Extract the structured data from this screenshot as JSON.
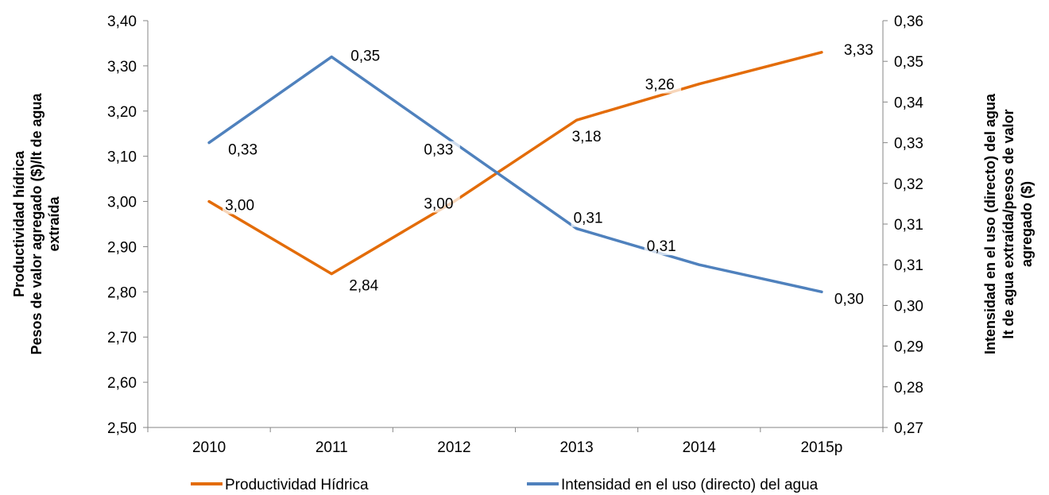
{
  "chart_data": {
    "type": "line",
    "categories": [
      "2010",
      "2011",
      "2012",
      "2013",
      "2014",
      "2015p"
    ],
    "y_left": {
      "title_lines": [
        "Productividad hídrica",
        "Pesos de valor agregado ($)/lt de agua",
        "extraída"
      ],
      "range": [
        2.5,
        3.4
      ],
      "ticks": [
        "2,50",
        "2,60",
        "2,70",
        "2,80",
        "2,90",
        "3,00",
        "3,10",
        "3,20",
        "3,30",
        "3,40"
      ]
    },
    "y_right": {
      "title_lines": [
        "Intensidad en el uso (directo) del agua",
        "lt de agua extraída/pesos de valor",
        "agregado ($)"
      ],
      "range": [
        0.27,
        0.36
      ],
      "ticks": [
        "0,27",
        "0,28",
        "0,29",
        "0,30",
        "0,31",
        "0,31",
        "0,32",
        "0,33",
        "0,34",
        "0,35",
        "0,36"
      ]
    },
    "grid": false,
    "legend_position": "bottom",
    "series": [
      {
        "name": "Productividad Hídrica",
        "axis": "left",
        "color": "#E36C09",
        "values": [
          3.0,
          2.84,
          3.0,
          3.18,
          3.26,
          3.33
        ],
        "labels": [
          "3,00",
          "2,84",
          "3,00",
          "3,18",
          "3,26",
          "3,33"
        ]
      },
      {
        "name": "Intensidad en el uso (directo) del agua",
        "axis": "right",
        "color": "#4F81BD",
        "values": [
          0.333,
          0.352,
          0.333,
          0.314,
          0.306,
          0.3
        ],
        "labels": [
          "0,33",
          "0,35",
          "0,33",
          "0,31",
          "0,31",
          "0,30"
        ]
      }
    ]
  }
}
